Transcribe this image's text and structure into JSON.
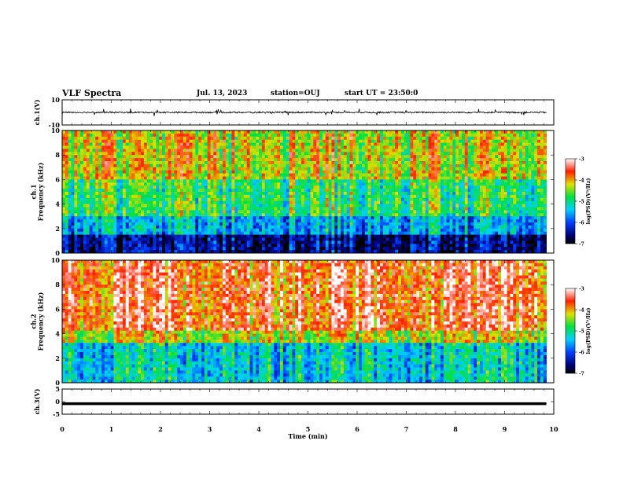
{
  "header": {
    "title": "VLF Spectra",
    "date": "Jul. 13, 2023",
    "station": "station=OUJ",
    "start": "start UT = 23:50:0"
  },
  "chart_data": [
    {
      "type": "line",
      "panel": "ch1-waveform",
      "ylabel": "ch.1(V)",
      "ylim": [
        -10,
        10
      ],
      "yticks": [
        "10",
        "-10"
      ],
      "x": [
        0,
        9.85
      ],
      "baseline": 0,
      "note_values": "noisy trace around 0 V with spikes up to about ±3 V"
    },
    {
      "type": "heatmap",
      "panel": "ch1-spectrogram",
      "ylabel": "ch.1\nFrequency (kHz)",
      "ylim": [
        0,
        10
      ],
      "yticks": [
        "0",
        "2",
        "4",
        "6",
        "8",
        "10"
      ],
      "xlim": [
        0,
        9.85
      ],
      "colorbar": {
        "label": "log(PSD)(V²/Hz)",
        "range": [
          -7,
          -3
        ],
        "ticks": [
          "-3",
          "-4",
          "-5",
          "-6",
          "-7"
        ]
      },
      "bands_khz": [
        {
          "from": 0,
          "to": 1.5,
          "level": -6.5
        },
        {
          "from": 1.5,
          "to": 3,
          "level": -5.5
        },
        {
          "from": 3,
          "to": 6,
          "level": -4.8
        },
        {
          "from": 6,
          "to": 10,
          "level": -4.2
        }
      ]
    },
    {
      "type": "heatmap",
      "panel": "ch2-spectrogram",
      "ylabel": "ch.2\nFrequency (kHz)",
      "ylim": [
        0,
        10
      ],
      "yticks": [
        "0",
        "2",
        "4",
        "6",
        "8",
        "10"
      ],
      "xlim": [
        0,
        9.85
      ],
      "colorbar": {
        "label": "log(PSD)(V²/Hz)",
        "range": [
          -7,
          -3
        ],
        "ticks": [
          "-3",
          "-4",
          "-5",
          "-6",
          "-7"
        ]
      },
      "bands_khz": [
        {
          "from": 0,
          "to": 3.3,
          "level": -5.3
        },
        {
          "from": 3.3,
          "to": 4.2,
          "level": -4.3
        },
        {
          "from": 4.2,
          "to": 10,
          "level": -3.6
        }
      ]
    },
    {
      "type": "line",
      "panel": "ch3-waveform",
      "ylabel": "ch.3(V)",
      "ylim": [
        -5,
        5
      ],
      "yticks": [
        "5",
        "0",
        "-5"
      ],
      "x": [
        0,
        9.85
      ],
      "y": [
        -0.8,
        -0.8
      ],
      "xlabel": "Time (min)",
      "xlim": [
        0,
        10
      ],
      "xticks": [
        "0",
        "1",
        "2",
        "3",
        "4",
        "5",
        "6",
        "7",
        "8",
        "9",
        "10"
      ]
    }
  ]
}
